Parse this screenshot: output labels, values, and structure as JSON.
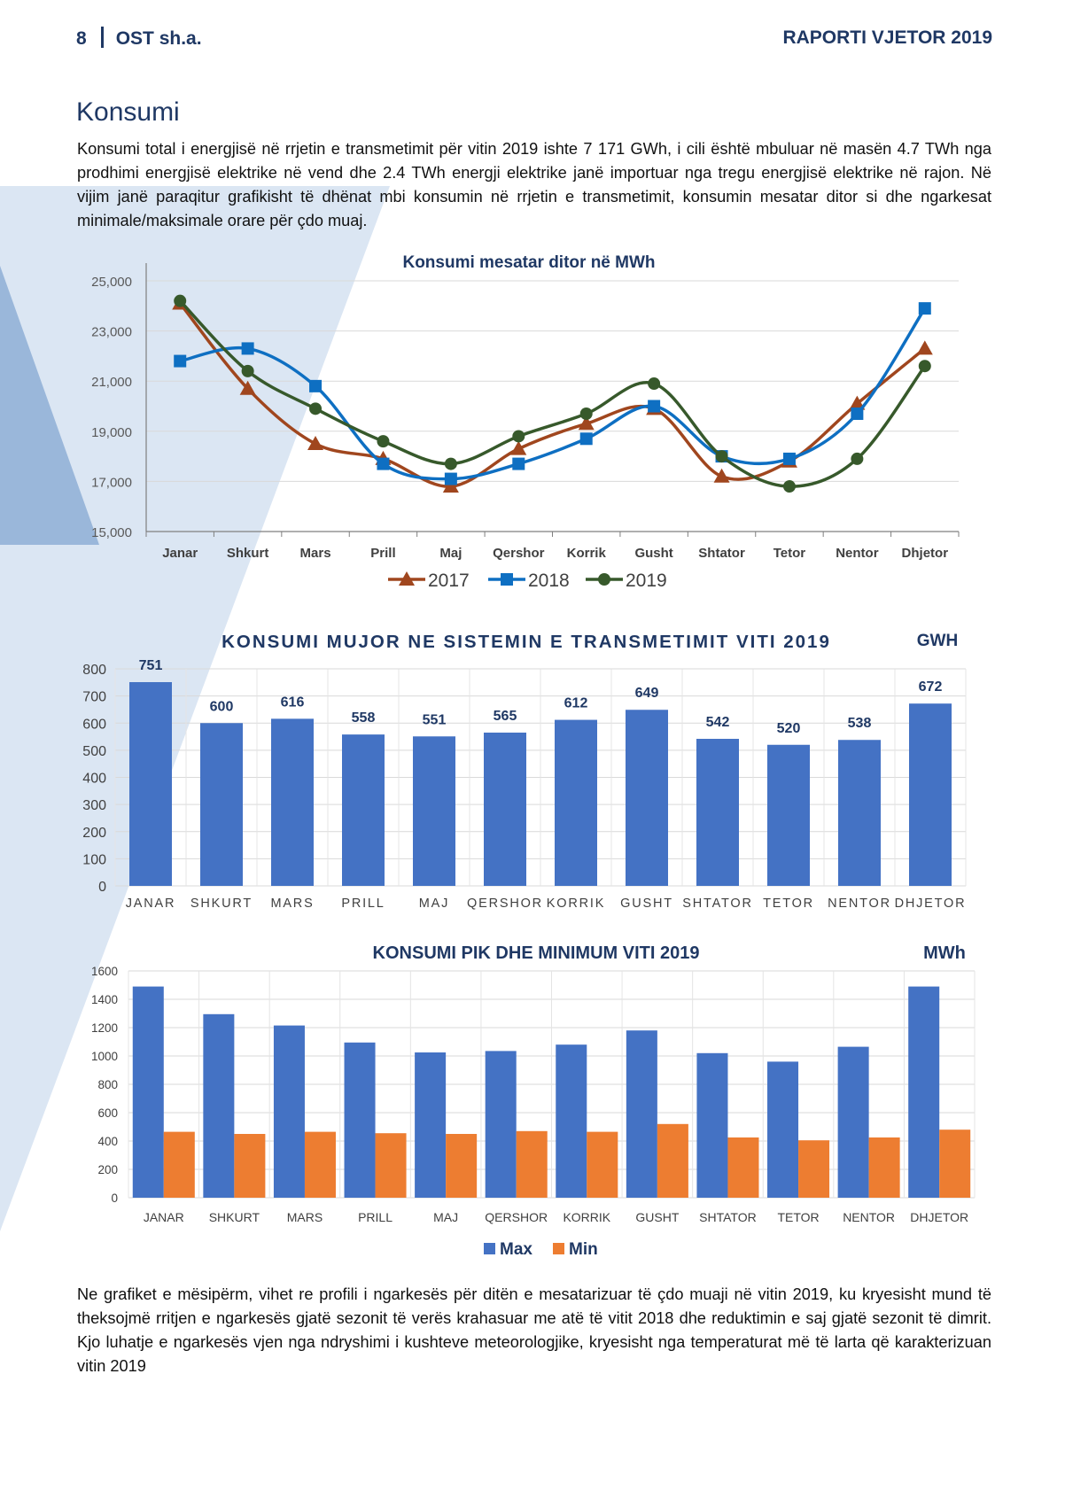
{
  "header": {
    "page_number": "8",
    "org": "OST sh.a.",
    "report": "RAPORTI VJETOR 2019"
  },
  "section_title": "Konsumi",
  "intro": "Konsumi total i energjisë në rrjetin e transmetimit për vitin 2019 ishte 7 171 GWh, i cili është mbuluar në masën 4.7 TWh nga prodhimi energjisë elektrike në vend dhe 2.4 TWh energji elektrike janë importuar nga tregu energjisë elektrike në rajon. Në vijim janë paraqitur grafikisht të dhënat mbi konsumin në rrjetin e transmetimit, konsumin mesatar ditor si dhe ngarkesat minimale/maksimale orare për çdo muaj.",
  "outro": "Ne grafiket e mësipërm, vihet re profili i ngarkesës për ditën e mesatarizuar të çdo muaji në vitin 2019, ku kryesisht mund të theksojmë rritjen e ngarkesës gjatë sezonit të verës krahasuar me atë të vitit 2018 dhe reduktimin e saj gjatë sezonit të dimrit. Kjo luhatje e ngarkesës vjen nga ndryshimi i kushteve meteorologjike, kryesisht nga temperaturat më të larta që karakterizuan vitin 2019",
  "chart_data": [
    {
      "type": "line",
      "title": "Konsumi mesatar ditor në MWh",
      "categories": [
        "Janar",
        "Shkurt",
        "Mars",
        "Prill",
        "Maj",
        "Qershor",
        "Korrik",
        "Gusht",
        "Shtator",
        "Tetor",
        "Nentor",
        "Dhjetor"
      ],
      "ylim": [
        15000,
        25000
      ],
      "yticks": [
        "15,000",
        "17,000",
        "19,000",
        "21,000",
        "23,000",
        "25,000"
      ],
      "grid": true,
      "legend": "bottom",
      "series": [
        {
          "name": "2017",
          "color": "#a0461e",
          "marker": "triangle",
          "values": [
            24100,
            20700,
            18500,
            17900,
            16800,
            18300,
            19300,
            19900,
            17200,
            17800,
            20100,
            22300
          ]
        },
        {
          "name": "2018",
          "color": "#0e6fc2",
          "marker": "square",
          "values": [
            21800,
            22300,
            20800,
            17700,
            17100,
            17700,
            18700,
            20000,
            18000,
            17900,
            19700,
            23900
          ]
        },
        {
          "name": "2019",
          "color": "#37592b",
          "marker": "circle",
          "values": [
            24200,
            21400,
            19900,
            18600,
            17700,
            18800,
            19700,
            20900,
            18000,
            16800,
            17900,
            21600
          ]
        }
      ]
    },
    {
      "type": "bar",
      "title": "KONSUMI MUJOR NE SISTEMIN E TRANSMETIMIT VITI 2019",
      "unit": "GWH",
      "categories": [
        "JANAR",
        "SHKURT",
        "MARS",
        "PRILL",
        "MAJ",
        "QERSHOR",
        "KORRIK",
        "GUSHT",
        "SHTATOR",
        "TETOR",
        "NENTOR",
        "DHJETOR"
      ],
      "ylim": [
        0,
        800
      ],
      "yticks": [
        "0",
        "100",
        "200",
        "300",
        "400",
        "500",
        "600",
        "700",
        "800"
      ],
      "grid": true,
      "color": "#4472c4",
      "values": [
        751,
        600,
        616,
        558,
        551,
        565,
        612,
        649,
        542,
        520,
        538,
        672
      ],
      "data_labels": [
        "751",
        "600",
        "616",
        "558",
        "551",
        "565",
        "612",
        "649",
        "542",
        "520",
        "538",
        "672"
      ]
    },
    {
      "type": "bar",
      "title": "KONSUMI PIK DHE MINIMUM VITI 2019",
      "unit": "MWh",
      "categories": [
        "JANAR",
        "SHKURT",
        "MARS",
        "PRILL",
        "MAJ",
        "QERSHOR",
        "KORRIK",
        "GUSHT",
        "SHTATOR",
        "TETOR",
        "NENTOR",
        "DHJETOR"
      ],
      "ylim": [
        0,
        1600
      ],
      "yticks": [
        "0",
        "200",
        "400",
        "600",
        "800",
        "1000",
        "1200",
        "1400",
        "1600"
      ],
      "grid": true,
      "legend": "bottom",
      "series": [
        {
          "name": "Max",
          "color": "#4472c4",
          "values": [
            1490,
            1295,
            1215,
            1095,
            1025,
            1035,
            1080,
            1180,
            1020,
            960,
            1065,
            1490
          ]
        },
        {
          "name": "Min",
          "color": "#ed7d31",
          "values": [
            465,
            450,
            465,
            455,
            450,
            470,
            465,
            520,
            425,
            405,
            425,
            480
          ]
        }
      ]
    }
  ]
}
